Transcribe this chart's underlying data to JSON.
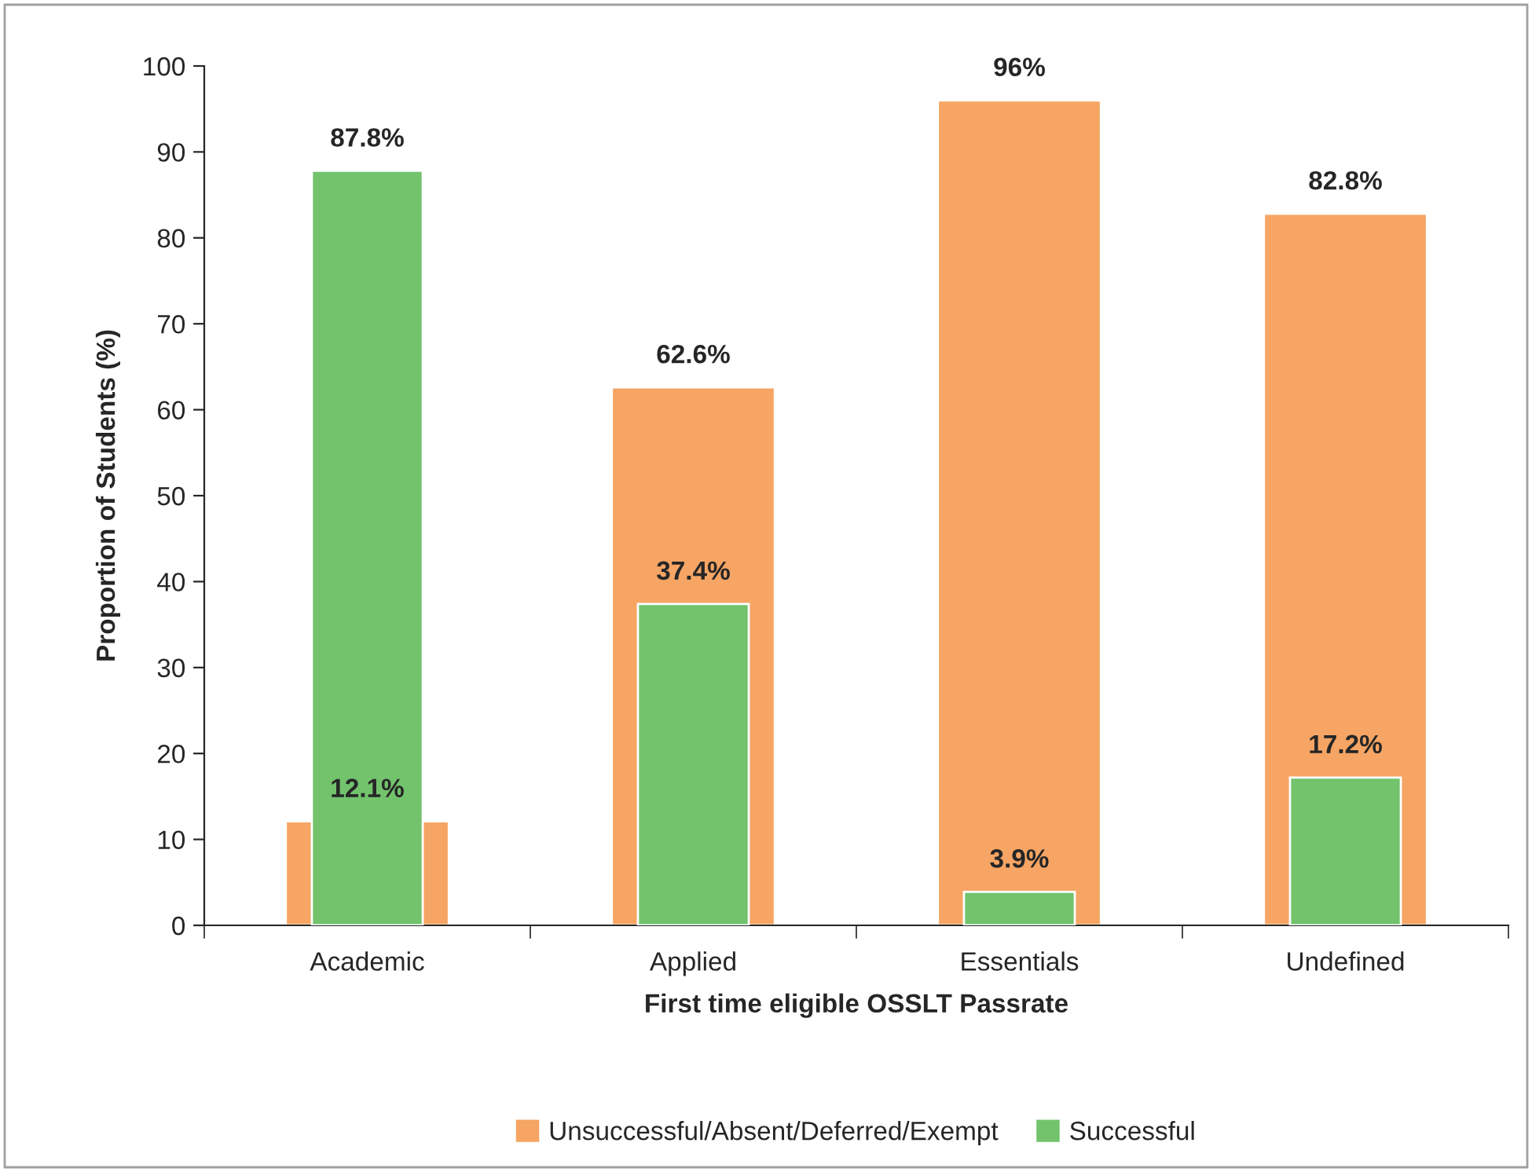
{
  "chart_data": {
    "type": "bar",
    "xlabel": "First time eligible OSSLT Passrate",
    "ylabel": "Proportion of Students (%)",
    "categories": [
      "Academic",
      "Applied",
      "Essentials",
      "Undefined"
    ],
    "series": [
      {
        "name": "Unsuccessful/Absent/Deferred/Exempt",
        "color": "#f6a564",
        "values": [
          12.1,
          62.6,
          96,
          82.8
        ],
        "value_labels": [
          "12.1%",
          "62.6%",
          "96%",
          "82.8%"
        ]
      },
      {
        "name": "Successful",
        "color": "#72c36c",
        "values": [
          87.8,
          37.4,
          3.9,
          17.2
        ],
        "value_labels": [
          "87.8%",
          "37.4%",
          "3.9%",
          "17.2%"
        ]
      }
    ],
    "ylim": [
      0,
      100
    ],
    "yticks": [
      0,
      10,
      20,
      30,
      40,
      50,
      60,
      70,
      80,
      90,
      100
    ],
    "grid": false,
    "legend": "bottom"
  }
}
